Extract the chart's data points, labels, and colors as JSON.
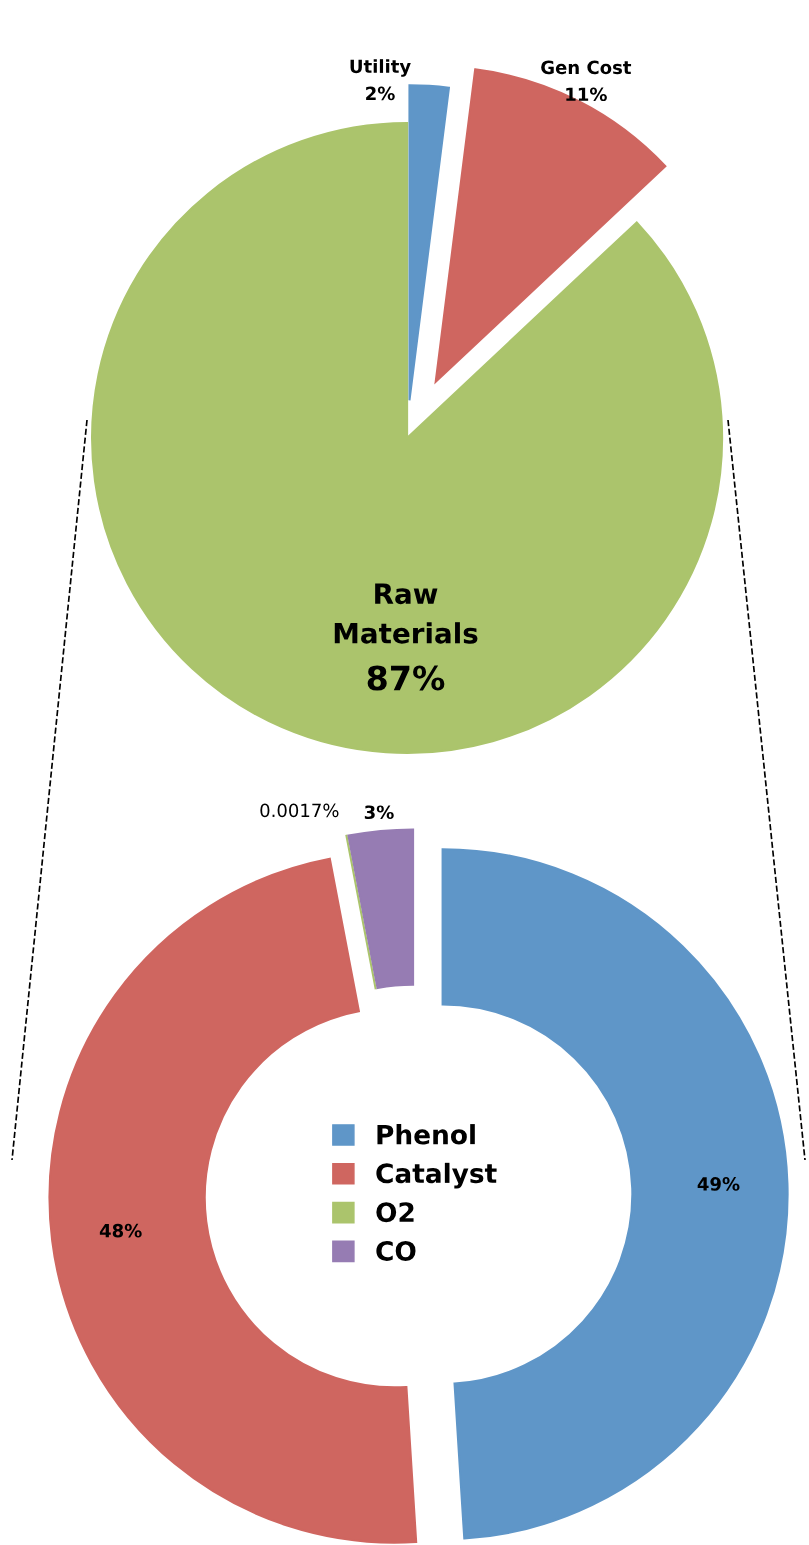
{
  "chart_data": [
    {
      "type": "pie",
      "categories": [
        "Utility",
        "Gen Cost",
        "Raw\nMaterials"
      ],
      "values": [
        2,
        11,
        87
      ],
      "colors": [
        "#5f96c8",
        "#cf6660",
        "#abc46c"
      ],
      "value_labels": [
        "2%",
        "11%",
        "87%"
      ]
    },
    {
      "type": "donut",
      "categories": [
        "Phenol",
        "Catalyst",
        "O2",
        "CO"
      ],
      "values": [
        49,
        48,
        0.0017,
        3
      ],
      "colors": [
        "#5f96c8",
        "#cf6660",
        "#abc46c",
        "#967cb3"
      ],
      "value_labels": [
        "49%",
        "48%",
        "0.0017%",
        "3%"
      ],
      "legend": "center"
    }
  ]
}
